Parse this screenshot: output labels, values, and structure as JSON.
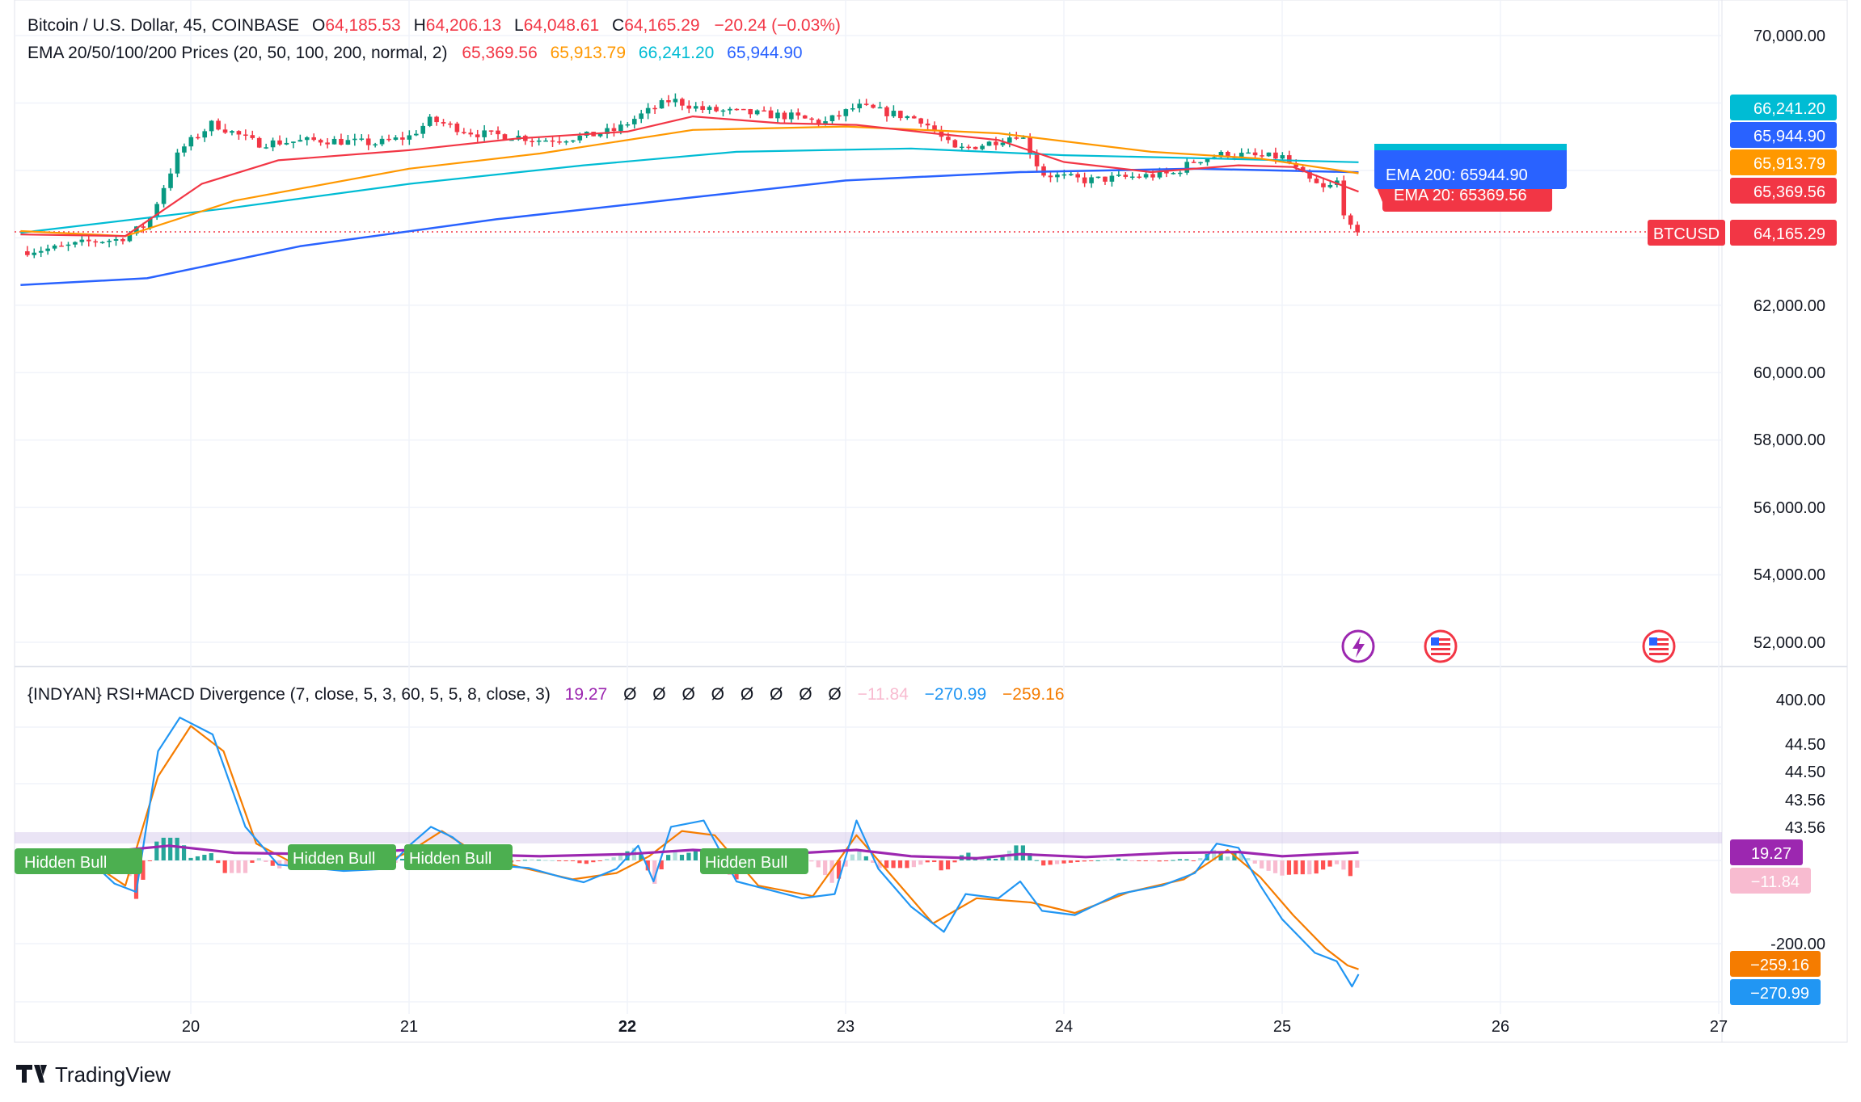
{
  "colors": {
    "up": "#089981",
    "down": "#f23645",
    "ema20": "#f23645",
    "ema50": "#ff9800",
    "ema100": "#00bcd4",
    "ema200": "#2962ff",
    "rsi": "#2196f3",
    "signal": "#f57c00",
    "purple": "#9c27b0",
    "hist_pos": "#26a69a",
    "hist_neg": "#ff5252",
    "label_green": "#4caf50",
    "pink": "#f8bbd0"
  },
  "header": {
    "symbol": "Bitcoin / U.S. Dollar, 45, COINBASE",
    "o_label": "O",
    "o_value": "64,185.53",
    "h_label": "H",
    "h_value": "64,206.13",
    "l_label": "L",
    "l_value": "64,048.61",
    "c_label": "C",
    "c_value": "64,165.29",
    "change": "−20.24 (−0.03%)",
    "ema_title": "EMA 20/50/100/200 Prices (20, 50, 100, 200, normal, 2)",
    "ema20_value": "65,369.56",
    "ema50_value": "65,913.79",
    "ema100_value": "66,241.20",
    "ema200_value": "65,944.90",
    "ind_title": "{INDYAN} RSI+MACD Divergence (7, close, 5, 3, 60, 5, 5, 8, close, 3)",
    "ind_v1": "19.27",
    "ind_empty": [
      "Ø",
      "Ø",
      "Ø",
      "Ø",
      "Ø",
      "Ø",
      "Ø",
      "Ø"
    ],
    "ind_v2": "−11.84",
    "ind_v3": "−270.99",
    "ind_v4": "−259.16"
  },
  "right_tags": {
    "ema100": "66,241.20",
    "ema200": "65,944.90",
    "ema50": "65,913.79",
    "ema20": "65,369.56",
    "symbol": "BTCUSD",
    "last": "64,165.29",
    "ind_purple": "19.27",
    "ind_pink": "−11.84",
    "ind_orange": "−259.16",
    "ind_blue": "−270.99"
  },
  "tooltip": {
    "front": "EMA 200: 65944.90",
    "back": "EMA 20: 65369.56"
  },
  "hidden_bull_label": "Hidden Bull",
  "branding": "TradingView",
  "events": {
    "flash_icon": "lightning-icon",
    "flag_icon": "us-flag-icon"
  },
  "chart_data": {
    "type": "candlestick",
    "timeframe": "45",
    "x_ticks": [
      "20",
      "21",
      "22",
      "23",
      "24",
      "25",
      "26",
      "27"
    ],
    "x_tick_bold": [
      "22"
    ],
    "price_ticks": [
      "70,000.00",
      "62,000.00",
      "60,000.00",
      "58,000.00",
      "56,000.00",
      "54,000.00",
      "52,000.00"
    ],
    "price_ylim": [
      51000,
      70500
    ],
    "last_price": 64165.29,
    "close_path": [
      [
        19.22,
        63600
      ],
      [
        19.4,
        63700
      ],
      [
        19.55,
        63900
      ],
      [
        19.67,
        63950
      ],
      [
        19.8,
        64400
      ],
      [
        19.95,
        66600
      ],
      [
        20.1,
        67400
      ],
      [
        20.3,
        66800
      ],
      [
        20.6,
        66900
      ],
      [
        20.85,
        66800
      ],
      [
        21.0,
        67000
      ],
      [
        21.1,
        67500
      ],
      [
        21.3,
        67100
      ],
      [
        21.5,
        67000
      ],
      [
        21.6,
        66900
      ],
      [
        21.8,
        67000
      ],
      [
        21.95,
        67200
      ],
      [
        22.05,
        67600
      ],
      [
        22.2,
        68100
      ],
      [
        22.35,
        67800
      ],
      [
        22.55,
        67700
      ],
      [
        22.75,
        67600
      ],
      [
        22.9,
        67400
      ],
      [
        23.05,
        67900
      ],
      [
        23.2,
        67700
      ],
      [
        23.35,
        67500
      ],
      [
        23.5,
        66600
      ],
      [
        23.65,
        66800
      ],
      [
        23.8,
        67100
      ],
      [
        23.9,
        65900
      ],
      [
        24.1,
        65700
      ],
      [
        24.3,
        65800
      ],
      [
        24.5,
        65900
      ],
      [
        24.6,
        66300
      ],
      [
        24.75,
        66500
      ],
      [
        24.9,
        66400
      ],
      [
        25.0,
        66400
      ],
      [
        25.1,
        65800
      ],
      [
        25.2,
        65400
      ],
      [
        25.25,
        65700
      ],
      [
        25.3,
        64300
      ],
      [
        25.35,
        64165
      ]
    ],
    "ema20_path": [
      [
        19.22,
        64100
      ],
      [
        19.7,
        64050
      ],
      [
        20.05,
        65600
      ],
      [
        20.4,
        66300
      ],
      [
        21.0,
        66600
      ],
      [
        21.5,
        66950
      ],
      [
        22.0,
        67150
      ],
      [
        22.3,
        67600
      ],
      [
        22.7,
        67400
      ],
      [
        23.05,
        67350
      ],
      [
        23.4,
        67100
      ],
      [
        23.7,
        66900
      ],
      [
        24.0,
        66250
      ],
      [
        24.4,
        65950
      ],
      [
        24.8,
        66150
      ],
      [
        25.05,
        66100
      ],
      [
        25.35,
        65370
      ]
    ],
    "ema50_path": [
      [
        19.22,
        64200
      ],
      [
        19.7,
        64050
      ],
      [
        20.2,
        65100
      ],
      [
        21.0,
        66050
      ],
      [
        21.6,
        66500
      ],
      [
        22.3,
        67200
      ],
      [
        23.0,
        67300
      ],
      [
        23.7,
        67100
      ],
      [
        24.4,
        66550
      ],
      [
        24.9,
        66350
      ],
      [
        25.35,
        65914
      ]
    ],
    "ema100_path": [
      [
        19.22,
        64150
      ],
      [
        20.2,
        64900
      ],
      [
        21.0,
        65600
      ],
      [
        21.8,
        66150
      ],
      [
        22.5,
        66550
      ],
      [
        23.3,
        66650
      ],
      [
        24.0,
        66450
      ],
      [
        24.7,
        66350
      ],
      [
        25.35,
        66241
      ]
    ],
    "ema200_path": [
      [
        19.22,
        62600
      ],
      [
        19.8,
        62800
      ],
      [
        20.5,
        63750
      ],
      [
        21.4,
        64550
      ],
      [
        22.3,
        65200
      ],
      [
        23.0,
        65700
      ],
      [
        23.8,
        65950
      ],
      [
        24.6,
        66050
      ],
      [
        25.35,
        65945
      ]
    ],
    "indicator": {
      "ticks": [
        "400.00",
        "44.50",
        "44.50",
        "43.56",
        "43.56",
        "-200.00"
      ],
      "rsi_path": [
        [
          19.22,
          -15
        ],
        [
          19.5,
          18
        ],
        [
          19.65,
          -55
        ],
        [
          19.75,
          -75
        ],
        [
          19.85,
          260
        ],
        [
          19.95,
          340
        ],
        [
          20.1,
          300
        ],
        [
          20.25,
          80
        ],
        [
          20.4,
          -10
        ],
        [
          20.7,
          -25
        ],
        [
          20.9,
          -20
        ],
        [
          21.0,
          35
        ],
        [
          21.1,
          80
        ],
        [
          21.2,
          55
        ],
        [
          21.35,
          -10
        ],
        [
          21.55,
          -18
        ],
        [
          21.7,
          -40
        ],
        [
          21.8,
          -52
        ],
        [
          21.95,
          -20
        ],
        [
          22.05,
          35
        ],
        [
          22.12,
          -50
        ],
        [
          22.2,
          80
        ],
        [
          22.35,
          95
        ],
        [
          22.5,
          -50
        ],
        [
          22.65,
          -70
        ],
        [
          22.8,
          -90
        ],
        [
          22.95,
          -80
        ],
        [
          23.05,
          95
        ],
        [
          23.15,
          -20
        ],
        [
          23.3,
          -110
        ],
        [
          23.45,
          -170
        ],
        [
          23.55,
          -80
        ],
        [
          23.7,
          -90
        ],
        [
          23.8,
          -50
        ],
        [
          23.9,
          -120
        ],
        [
          24.05,
          -130
        ],
        [
          24.25,
          -80
        ],
        [
          24.45,
          -60
        ],
        [
          24.6,
          -30
        ],
        [
          24.7,
          40
        ],
        [
          24.8,
          30
        ],
        [
          24.9,
          -60
        ],
        [
          25.0,
          -140
        ],
        [
          25.15,
          -220
        ],
        [
          25.25,
          -240
        ],
        [
          25.32,
          -300
        ],
        [
          25.35,
          -271
        ]
      ],
      "signal_path": [
        [
          19.22,
          -10
        ],
        [
          19.5,
          10
        ],
        [
          19.7,
          -60
        ],
        [
          19.85,
          200
        ],
        [
          20.0,
          320
        ],
        [
          20.15,
          260
        ],
        [
          20.3,
          40
        ],
        [
          20.5,
          -15
        ],
        [
          20.8,
          -22
        ],
        [
          21.0,
          20
        ],
        [
          21.15,
          70
        ],
        [
          21.3,
          20
        ],
        [
          21.5,
          -15
        ],
        [
          21.75,
          -45
        ],
        [
          21.95,
          -30
        ],
        [
          22.1,
          10
        ],
        [
          22.25,
          70
        ],
        [
          22.4,
          60
        ],
        [
          22.6,
          -60
        ],
        [
          22.85,
          -85
        ],
        [
          23.05,
          60
        ],
        [
          23.2,
          -30
        ],
        [
          23.4,
          -150
        ],
        [
          23.6,
          -90
        ],
        [
          23.85,
          -100
        ],
        [
          24.05,
          -125
        ],
        [
          24.3,
          -75
        ],
        [
          24.55,
          -45
        ],
        [
          24.75,
          25
        ],
        [
          24.9,
          -40
        ],
        [
          25.05,
          -130
        ],
        [
          25.2,
          -210
        ],
        [
          25.3,
          -250
        ],
        [
          25.35,
          -259
        ]
      ],
      "purple_path": [
        [
          19.22,
          10
        ],
        [
          19.5,
          15
        ],
        [
          19.9,
          35
        ],
        [
          20.2,
          18
        ],
        [
          20.6,
          15
        ],
        [
          21.0,
          25
        ],
        [
          21.2,
          15
        ],
        [
          21.6,
          10
        ],
        [
          22.0,
          15
        ],
        [
          22.3,
          25
        ],
        [
          22.7,
          15
        ],
        [
          23.05,
          25
        ],
        [
          23.3,
          10
        ],
        [
          23.6,
          5
        ],
        [
          23.8,
          15
        ],
        [
          24.1,
          8
        ],
        [
          24.5,
          18
        ],
        [
          24.8,
          20
        ],
        [
          25.0,
          10
        ],
        [
          25.35,
          19
        ]
      ]
    }
  }
}
